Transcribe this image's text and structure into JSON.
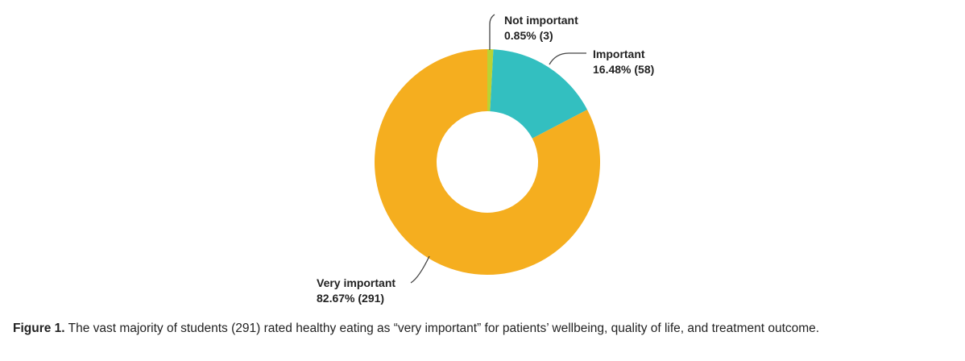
{
  "chart_data": {
    "type": "pie",
    "style": "donut",
    "start": "top, clockwise",
    "slices": [
      {
        "label": "Not important",
        "percent_text": "0.85% (3)",
        "value": 3,
        "percent": 0.85,
        "color": "#B9D334"
      },
      {
        "label": "Important",
        "percent_text": "16.48% (58)",
        "value": 58,
        "percent": 16.48,
        "color": "#33BFC0"
      },
      {
        "label": "Very important",
        "percent_text": "82.67% (291)",
        "value": 291,
        "percent": 82.67,
        "color": "#F5AE1F"
      }
    ]
  },
  "caption": {
    "label": "Figure 1.",
    "text": " The vast majority of students (291) rated healthy eating as “very important” for patients’ wellbeing, quality of life, and treatment outcome."
  }
}
